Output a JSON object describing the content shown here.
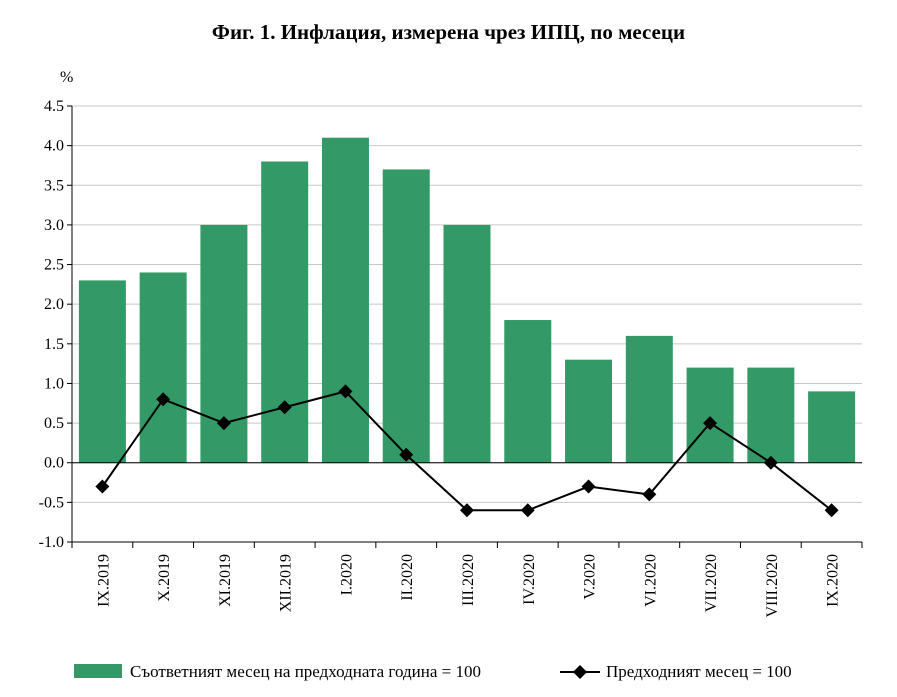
{
  "chart_data": {
    "type": "bar",
    "title": "Фиг. 1. Инфлация, измерена чрез ИПЦ, по месеци",
    "ylabel": "%",
    "xlabel": "",
    "ylim": [
      -1.0,
      4.5
    ],
    "yticks": [
      "4.5",
      "4.0",
      "3.5",
      "3.0",
      "2.5",
      "2.0",
      "1.5",
      "1.0",
      "0.5",
      "0.0",
      "-0.5",
      "-1.0"
    ],
    "grid": true,
    "legend_position": "bottom",
    "categories": [
      "IX.2019",
      "X.2019",
      "XI.2019",
      "XII.2019",
      "I.2020",
      "II.2020",
      "III.2020",
      "IV.2020",
      "V.2020",
      "VI.2020",
      "VII.2020",
      "VIII.2020",
      "IX.2020"
    ],
    "series": [
      {
        "name": "Съответният месец на предходната година = 100",
        "type": "bar",
        "color": "#339966",
        "values": [
          2.3,
          2.4,
          3.0,
          3.8,
          4.1,
          3.7,
          3.0,
          1.8,
          1.3,
          1.6,
          1.2,
          1.2,
          0.9
        ]
      },
      {
        "name": "Предходният месец = 100",
        "type": "line",
        "color": "#000000",
        "marker": "diamond",
        "values": [
          -0.3,
          0.8,
          0.5,
          0.7,
          0.9,
          0.1,
          -0.6,
          -0.6,
          -0.3,
          -0.4,
          0.5,
          0.0,
          -0.6
        ]
      }
    ]
  }
}
